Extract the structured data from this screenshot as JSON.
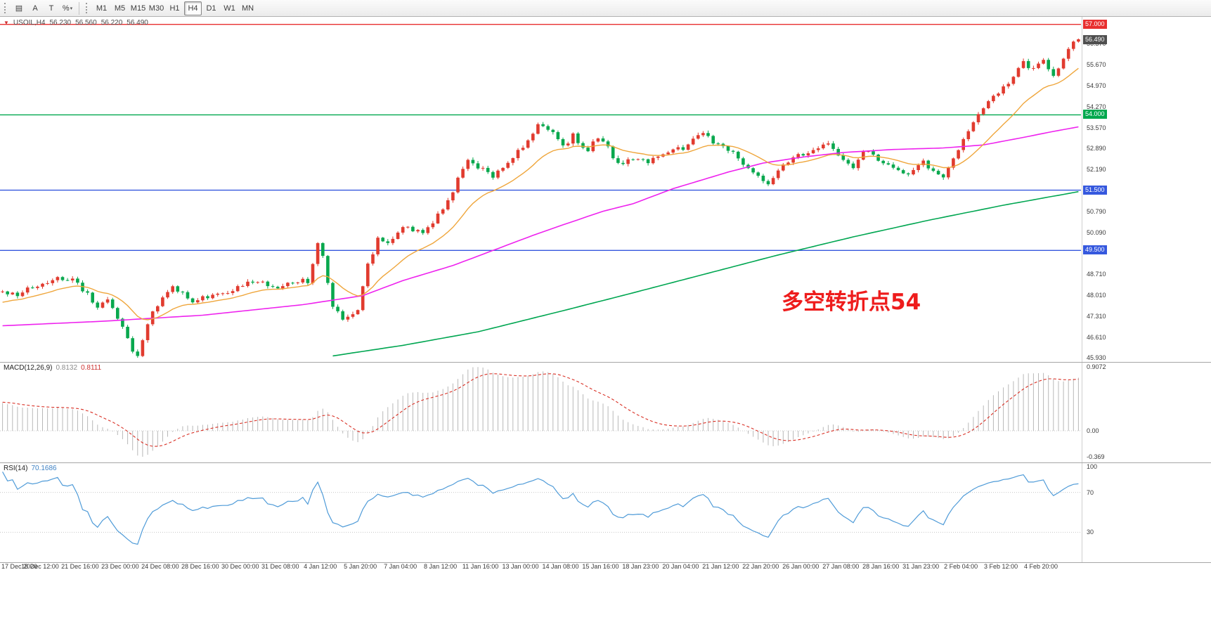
{
  "toolbar": {
    "tools": [
      {
        "name": "chart-list-tool",
        "glyph": "▤"
      },
      {
        "name": "text-tool",
        "glyph": "A"
      },
      {
        "name": "text-label-tool",
        "glyph": "T"
      },
      {
        "name": "fibonacci-tool",
        "glyph": "%",
        "caret": true
      }
    ],
    "timeframes": [
      "M1",
      "M5",
      "M15",
      "M30",
      "H1",
      "H4",
      "D1",
      "W1",
      "MN"
    ],
    "active_timeframe": "H4"
  },
  "header": {
    "marker": "▼",
    "symbol_period": "USOIL,H4",
    "open": "56.230",
    "high": "56.560",
    "low": "56.220",
    "close": "56.490"
  },
  "annotation": {
    "text": "多空转折点54",
    "color": "#ee1c1c"
  },
  "chart_data": {
    "type": "candlestick",
    "symbol": "USOIL",
    "period": "H4",
    "bars_visible": 216,
    "prehistory_bars": 45,
    "noise": 0.17,
    "label_step_bars": 8,
    "up_color": "#e13b2f",
    "down_color": "#09a84e",
    "y_axis": {
      "min": 45.8,
      "max": 57.25,
      "ticks": [
        "56.370",
        "55.670",
        "54.970",
        "54.270",
        "53.570",
        "52.890",
        "52.190",
        "50.790",
        "50.090",
        "48.710",
        "48.010",
        "47.310",
        "46.610",
        "45.930"
      ]
    },
    "price_tags": [
      {
        "value": "57.000",
        "color": "#e82f2f",
        "interactable": true
      },
      {
        "value": "56.490",
        "color": "#4f4f4f",
        "interactable": false
      },
      {
        "value": "54.000",
        "color": "#00a84e",
        "interactable": true
      },
      {
        "value": "51.500",
        "color": "#3558de",
        "interactable": true
      },
      {
        "value": "49.500",
        "color": "#3558de",
        "interactable": true
      }
    ],
    "horizontal_lines": [
      {
        "price": 57.0,
        "color": "#e82f2f"
      },
      {
        "price": 54.0,
        "color": "#00a84e"
      },
      {
        "price": 51.5,
        "color": "#3558de"
      },
      {
        "price": 49.5,
        "color": "#3558de"
      }
    ],
    "x_axis_labels": [
      "17 Dec 2020",
      "18 Dec 12:00",
      "21 Dec 16:00",
      "23 Dec 00:00",
      "24 Dec 08:00",
      "28 Dec 16:00",
      "30 Dec 00:00",
      "31 Dec 08:00",
      "4 Jan 12:00",
      "5 Jan 20:00",
      "7 Jan 04:00",
      "8 Jan 12:00",
      "11 Jan 16:00",
      "13 Jan 00:00",
      "14 Jan 08:00",
      "15 Jan 16:00",
      "18 Jan 23:00",
      "20 Jan 04:00",
      "21 Jan 12:00",
      "22 Jan 20:00",
      "26 Jan 00:00",
      "27 Jan 08:00",
      "28 Jan 16:00",
      "31 Jan 23:00",
      "2 Feb 04:00",
      "3 Feb 12:00",
      "4 Feb 20:00"
    ],
    "close_path_anchors": [
      [
        -45,
        45.4
      ],
      [
        -30,
        46.3
      ],
      [
        -15,
        47.5
      ],
      [
        -5,
        47.9
      ],
      [
        0,
        48.15
      ],
      [
        3,
        48.0
      ],
      [
        6,
        48.3
      ],
      [
        9,
        48.45
      ],
      [
        12,
        48.6
      ],
      [
        14,
        48.55
      ],
      [
        16,
        48.2
      ],
      [
        19,
        47.65
      ],
      [
        21,
        47.9
      ],
      [
        24,
        46.9
      ],
      [
        26,
        46.15
      ],
      [
        27,
        46.05
      ],
      [
        28,
        46.55
      ],
      [
        30,
        47.45
      ],
      [
        34,
        48.3
      ],
      [
        38,
        47.85
      ],
      [
        41,
        48.0
      ],
      [
        44,
        48.1
      ],
      [
        47,
        48.3
      ],
      [
        50,
        48.5
      ],
      [
        53,
        48.35
      ],
      [
        56,
        48.3
      ],
      [
        59,
        48.45
      ],
      [
        61,
        48.5
      ],
      [
        63,
        49.7
      ],
      [
        64,
        49.3
      ],
      [
        66,
        47.6
      ],
      [
        68,
        47.25
      ],
      [
        71,
        47.55
      ],
      [
        73,
        49.0
      ],
      [
        75,
        49.9
      ],
      [
        77,
        49.7
      ],
      [
        79,
        50.1
      ],
      [
        81,
        50.3
      ],
      [
        83,
        50.1
      ],
      [
        85,
        50.2
      ],
      [
        88,
        50.9
      ],
      [
        90,
        51.5
      ],
      [
        91,
        51.9
      ],
      [
        93,
        52.55
      ],
      [
        95,
        52.3
      ],
      [
        96,
        52.2
      ],
      [
        98,
        51.9
      ],
      [
        101,
        52.4
      ],
      [
        104,
        52.95
      ],
      [
        106,
        53.4
      ],
      [
        107,
        53.75
      ],
      [
        109,
        53.55
      ],
      [
        110,
        53.4
      ],
      [
        112,
        52.9
      ],
      [
        114,
        53.3
      ],
      [
        117,
        52.8
      ],
      [
        119,
        53.3
      ],
      [
        121,
        52.9
      ],
      [
        123,
        52.35
      ],
      [
        126,
        52.5
      ],
      [
        129,
        52.45
      ],
      [
        132,
        52.75
      ],
      [
        136,
        52.9
      ],
      [
        139,
        53.3
      ],
      [
        141,
        53.35
      ],
      [
        142,
        53.1
      ],
      [
        145,
        52.85
      ],
      [
        148,
        52.4
      ],
      [
        151,
        52.0
      ],
      [
        153,
        51.75
      ],
      [
        156,
        52.3
      ],
      [
        159,
        52.7
      ],
      [
        162,
        52.8
      ],
      [
        165,
        53.0
      ],
      [
        168,
        52.55
      ],
      [
        170,
        52.25
      ],
      [
        172,
        52.8
      ],
      [
        175,
        52.55
      ],
      [
        178,
        52.2
      ],
      [
        181,
        51.95
      ],
      [
        184,
        52.4
      ],
      [
        186,
        52.2
      ],
      [
        188,
        51.9
      ],
      [
        191,
        52.9
      ],
      [
        194,
        53.7
      ],
      [
        197,
        54.5
      ],
      [
        200,
        54.9
      ],
      [
        202,
        55.3
      ],
      [
        204,
        55.7
      ],
      [
        206,
        55.5
      ],
      [
        208,
        55.85
      ],
      [
        210,
        55.3
      ],
      [
        212,
        55.9
      ],
      [
        214,
        56.35
      ],
      [
        215,
        56.49
      ]
    ],
    "ma_colors": {
      "fast": "#efa63c",
      "mid": "#ee22ee",
      "slow": "#00a651"
    },
    "ma_fast_period": 16,
    "ma_mid_anchors": [
      [
        0,
        47.0
      ],
      [
        20,
        47.15
      ],
      [
        40,
        47.35
      ],
      [
        60,
        47.7
      ],
      [
        72,
        48.0
      ],
      [
        80,
        48.5
      ],
      [
        90,
        49.0
      ],
      [
        98,
        49.5
      ],
      [
        106,
        50.0
      ],
      [
        112,
        50.35
      ],
      [
        120,
        50.8
      ],
      [
        126,
        51.05
      ],
      [
        134,
        51.55
      ],
      [
        145,
        52.1
      ],
      [
        152,
        52.4
      ],
      [
        160,
        52.6
      ],
      [
        168,
        52.75
      ],
      [
        178,
        52.85
      ],
      [
        188,
        52.9
      ],
      [
        196,
        53.0
      ],
      [
        204,
        53.25
      ],
      [
        210,
        53.45
      ],
      [
        215,
        53.6
      ]
    ],
    "ma_slow_anchors": [
      [
        66,
        46.0
      ],
      [
        80,
        46.35
      ],
      [
        95,
        46.8
      ],
      [
        112,
        47.5
      ],
      [
        125,
        48.05
      ],
      [
        140,
        48.7
      ],
      [
        155,
        49.35
      ],
      [
        170,
        49.95
      ],
      [
        185,
        50.5
      ],
      [
        200,
        51.0
      ],
      [
        215,
        51.45
      ]
    ],
    "macd": {
      "label": "MACD(12,26,9)",
      "value_main": "0.8132",
      "value_signal": "0.8111",
      "axis": [
        "0.9072",
        "0.00",
        "-0.369"
      ],
      "histogram_color": "#b8b8b8",
      "signal_color": "#d93025",
      "range": [
        -0.45,
        0.98
      ]
    },
    "rsi": {
      "label": "RSI(14)",
      "value": "70.1686",
      "axis": [
        "100",
        "70",
        "30"
      ],
      "levels": [
        70,
        30
      ],
      "line_color": "#4f9bd8",
      "range": [
        0,
        100
      ]
    }
  }
}
